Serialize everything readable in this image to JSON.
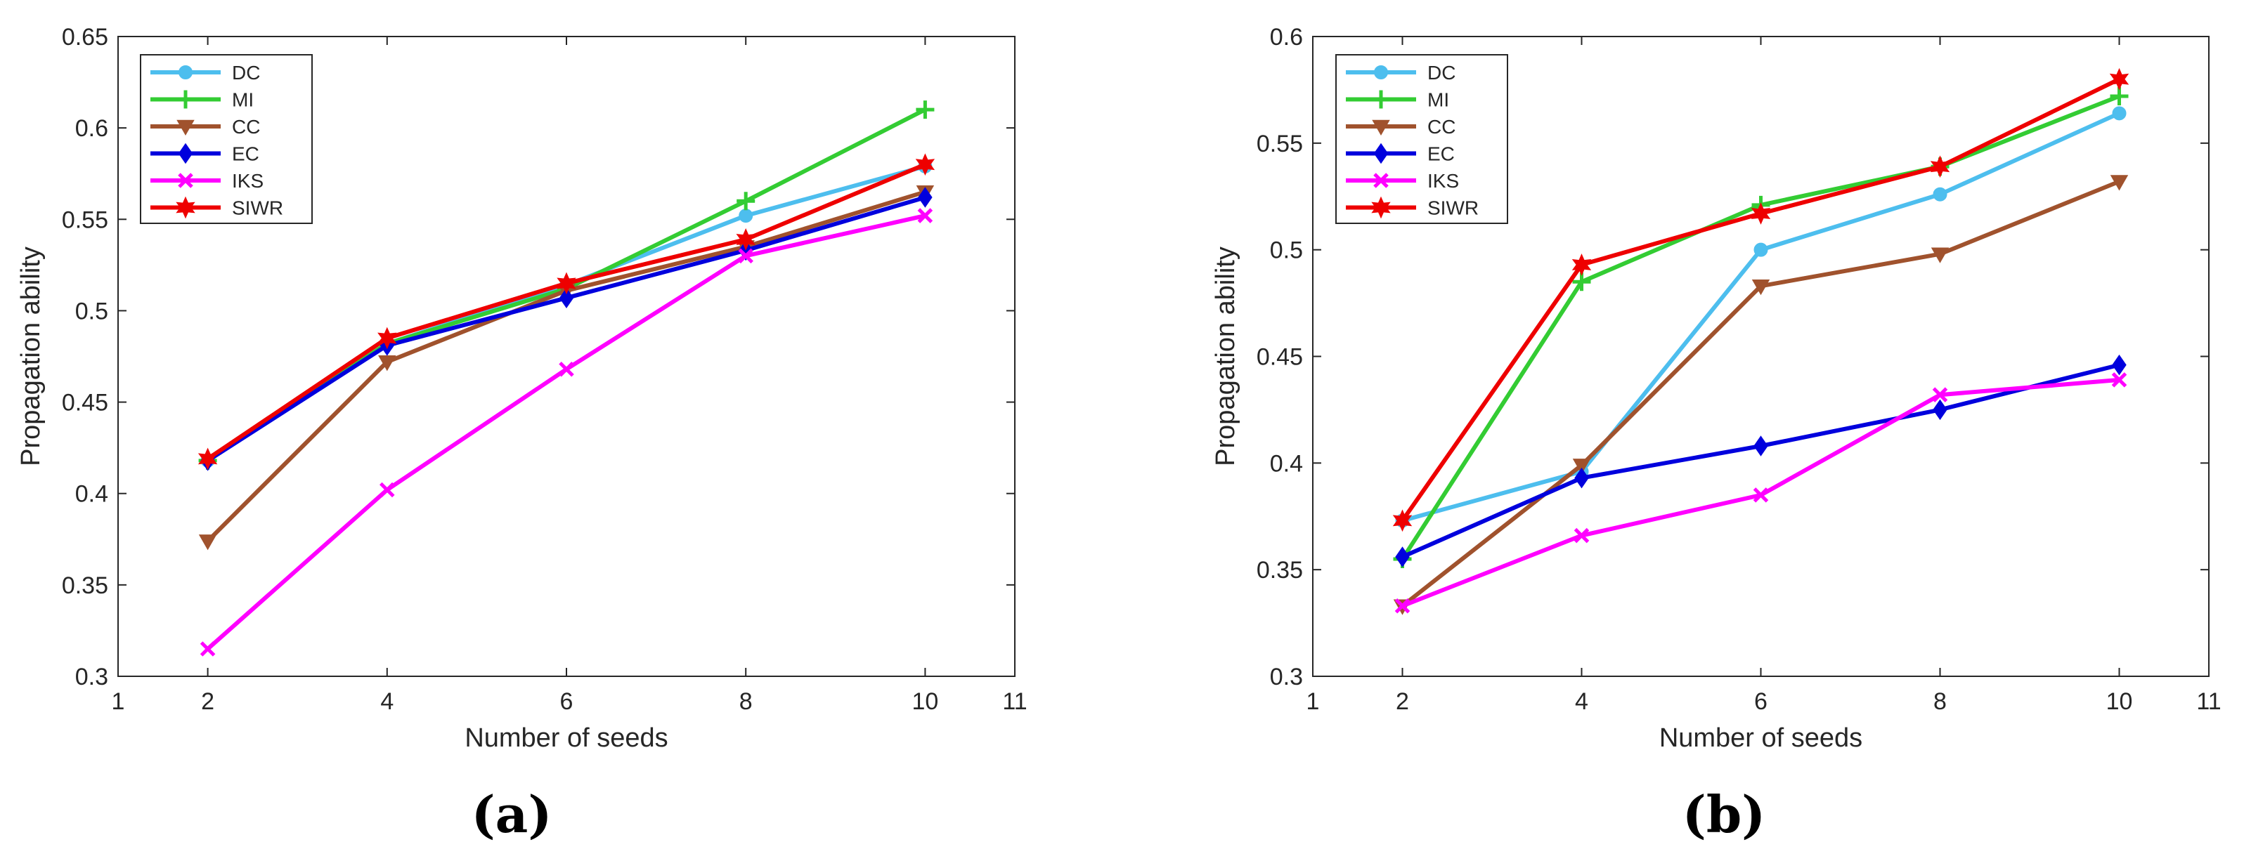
{
  "chart_data": [
    {
      "type": "line",
      "panel_label": "(a)",
      "title": "",
      "xlabel": "Number of seeds",
      "ylabel": "Propagation ability",
      "xlim": [
        1,
        11
      ],
      "ylim": [
        0.3,
        0.65
      ],
      "xticks": [
        1,
        2,
        4,
        6,
        8,
        10,
        11
      ],
      "yticks": [
        0.3,
        0.35,
        0.4,
        0.45,
        0.5,
        0.55,
        0.6,
        0.65
      ],
      "ytick_labels": [
        "0.3",
        "0.35",
        "0.4",
        "0.45",
        "0.5",
        "0.55",
        "0.6",
        "0.65"
      ],
      "grid": false,
      "legend_position": "top-left",
      "x": [
        2,
        4,
        6,
        8,
        10
      ],
      "series": [
        {
          "name": "DC",
          "color": "#4DBEEE",
          "marker": "circle",
          "values": [
            0.418,
            0.482,
            0.514,
            0.552,
            0.579
          ]
        },
        {
          "name": "MI",
          "color": "#33CC33",
          "marker": "plus",
          "values": [
            0.418,
            0.482,
            0.512,
            0.56,
            0.61
          ]
        },
        {
          "name": "CC",
          "color": "#A0522D",
          "marker": "triangle",
          "values": [
            0.374,
            0.472,
            0.511,
            0.535,
            0.565
          ]
        },
        {
          "name": "EC",
          "color": "#0000DD",
          "marker": "diamond",
          "values": [
            0.418,
            0.481,
            0.507,
            0.533,
            0.562
          ]
        },
        {
          "name": "IKS",
          "color": "#FF00FF",
          "marker": "x",
          "values": [
            0.315,
            0.402,
            0.468,
            0.53,
            0.552
          ]
        },
        {
          "name": "SIWR",
          "color": "#EE0000",
          "marker": "star",
          "values": [
            0.419,
            0.485,
            0.515,
            0.539,
            0.58
          ]
        }
      ]
    },
    {
      "type": "line",
      "panel_label": "(b)",
      "title": "",
      "xlabel": "Number of seeds",
      "ylabel": "Propagation ability",
      "xlim": [
        1,
        11
      ],
      "ylim": [
        0.3,
        0.6
      ],
      "xticks": [
        1,
        2,
        4,
        6,
        8,
        10,
        11
      ],
      "yticks": [
        0.3,
        0.35,
        0.4,
        0.45,
        0.5,
        0.55,
        0.6
      ],
      "ytick_labels": [
        "0.3",
        "0.35",
        "0.4",
        "0.45",
        "0.5",
        "0.55",
        "0.6"
      ],
      "grid": false,
      "legend_position": "top-left",
      "x": [
        2,
        4,
        6,
        8,
        10
      ],
      "series": [
        {
          "name": "DC",
          "color": "#4DBEEE",
          "marker": "circle",
          "values": [
            0.373,
            0.396,
            0.5,
            0.526,
            0.564
          ]
        },
        {
          "name": "MI",
          "color": "#33CC33",
          "marker": "plus",
          "values": [
            0.355,
            0.485,
            0.521,
            0.539,
            0.572
          ]
        },
        {
          "name": "CC",
          "color": "#A0522D",
          "marker": "triangle",
          "values": [
            0.333,
            0.399,
            0.483,
            0.498,
            0.532
          ]
        },
        {
          "name": "EC",
          "color": "#0000DD",
          "marker": "diamond",
          "values": [
            0.356,
            0.393,
            0.408,
            0.425,
            0.446
          ]
        },
        {
          "name": "IKS",
          "color": "#FF00FF",
          "marker": "x",
          "values": [
            0.333,
            0.366,
            0.385,
            0.432,
            0.439
          ]
        },
        {
          "name": "SIWR",
          "color": "#EE0000",
          "marker": "star",
          "values": [
            0.373,
            0.493,
            0.517,
            0.539,
            0.58
          ]
        }
      ]
    }
  ]
}
